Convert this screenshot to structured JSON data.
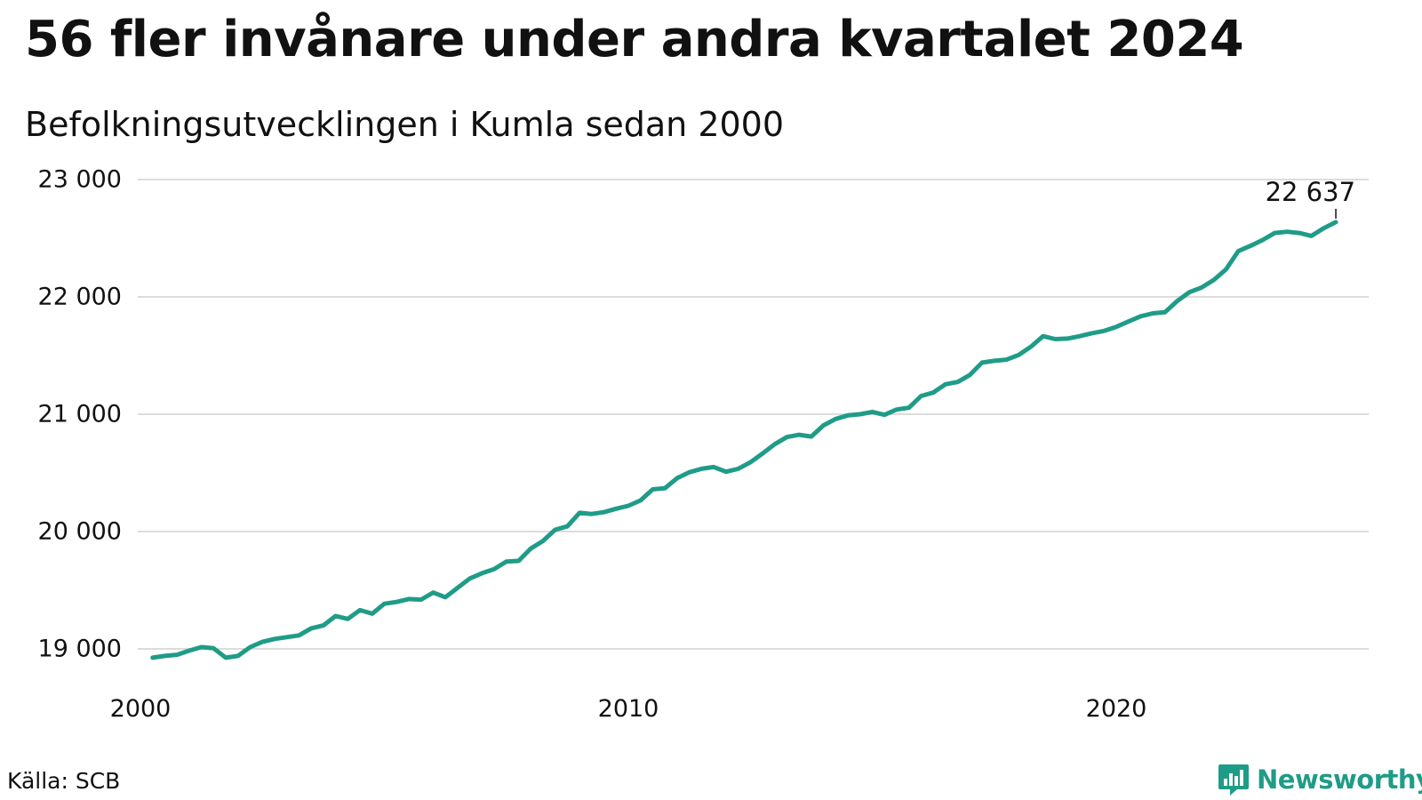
{
  "chart_data": {
    "type": "line",
    "title": "56 fler invånare under andra kvartalet 2024",
    "subtitle": "Befolkningsutvecklingen i Kumla sedan 2000",
    "xlabel": "",
    "ylabel": "",
    "xlim": [
      2000,
      2024.5
    ],
    "ylim": [
      18950,
      23000
    ],
    "x_ticks": [
      {
        "value": 2000,
        "label": "2000"
      },
      {
        "value": 2010,
        "label": "2010"
      },
      {
        "value": 2020,
        "label": "2020"
      }
    ],
    "y_ticks": [
      {
        "value": 19000,
        "label": "19 000"
      },
      {
        "value": 20000,
        "label": "20 000"
      },
      {
        "value": 21000,
        "label": "21 000"
      },
      {
        "value": 22000,
        "label": "22 000"
      },
      {
        "value": 23000,
        "label": "23 000"
      }
    ],
    "grid": true,
    "legend": "none",
    "line_color": "#1f9c87",
    "end_label": "22 637",
    "series": [
      {
        "x": [
          2000.25,
          2000.5,
          2000.75,
          2001,
          2001.25,
          2001.5,
          2001.75,
          2002,
          2002.25,
          2002.5,
          2002.75,
          2003,
          2003.25,
          2003.5,
          2003.75,
          2004,
          2004.25,
          2004.5,
          2004.75,
          2005,
          2005.25,
          2005.5,
          2005.75,
          2006,
          2006.25,
          2006.5,
          2006.75,
          2007,
          2007.25,
          2007.5,
          2007.75,
          2008,
          2008.25,
          2008.5,
          2008.75,
          2009,
          2009.25,
          2009.5,
          2009.75,
          2010,
          2010.25,
          2010.5,
          2010.75,
          2011,
          2011.25,
          2011.5,
          2011.75,
          2012,
          2012.25,
          2012.5,
          2012.75,
          2013,
          2013.25,
          2013.5,
          2013.75,
          2014,
          2014.25,
          2014.5,
          2014.75,
          2015,
          2015.25,
          2015.5,
          2015.75,
          2016,
          2016.25,
          2016.5,
          2016.75,
          2017,
          2017.25,
          2017.5,
          2017.75,
          2018,
          2018.25,
          2018.5,
          2018.75,
          2019,
          2019.25,
          2019.5,
          2019.75,
          2020,
          2020.25,
          2020.5,
          2020.75,
          2021,
          2021.25,
          2021.5,
          2021.75,
          2022,
          2022.25,
          2022.5,
          2022.75,
          2023,
          2023.25,
          2023.5,
          2023.75,
          2024,
          2024.25,
          2024.5
        ],
        "values": [
          18925,
          18940,
          18950,
          18985,
          19015,
          19005,
          18925,
          18940,
          19015,
          19060,
          19085,
          19100,
          19115,
          19175,
          19200,
          19280,
          19255,
          19330,
          19300,
          19385,
          19400,
          19425,
          19420,
          19480,
          19440,
          19520,
          19600,
          19645,
          19680,
          19745,
          19750,
          19855,
          19920,
          20015,
          20045,
          20160,
          20150,
          20165,
          20195,
          20220,
          20265,
          20360,
          20370,
          20455,
          20505,
          20535,
          20550,
          20510,
          20535,
          20590,
          20665,
          20745,
          20805,
          20825,
          20810,
          20905,
          20960,
          20990,
          21000,
          21020,
          20995,
          21040,
          21055,
          21155,
          21185,
          21255,
          21275,
          21335,
          21440,
          21455,
          21465,
          21505,
          21575,
          21665,
          21640,
          21645,
          21665,
          21690,
          21710,
          21745,
          21790,
          21835,
          21860,
          21870,
          21965,
          22040,
          22080,
          22145,
          22235,
          22390,
          22435,
          22485,
          22545,
          22555,
          22545,
          22520,
          22585,
          22637
        ]
      }
    ]
  },
  "source": "Källa: SCB",
  "brand": {
    "name": "Newsworthy",
    "icon": "newsworthy-logo-icon",
    "color": "#1f9c87"
  }
}
